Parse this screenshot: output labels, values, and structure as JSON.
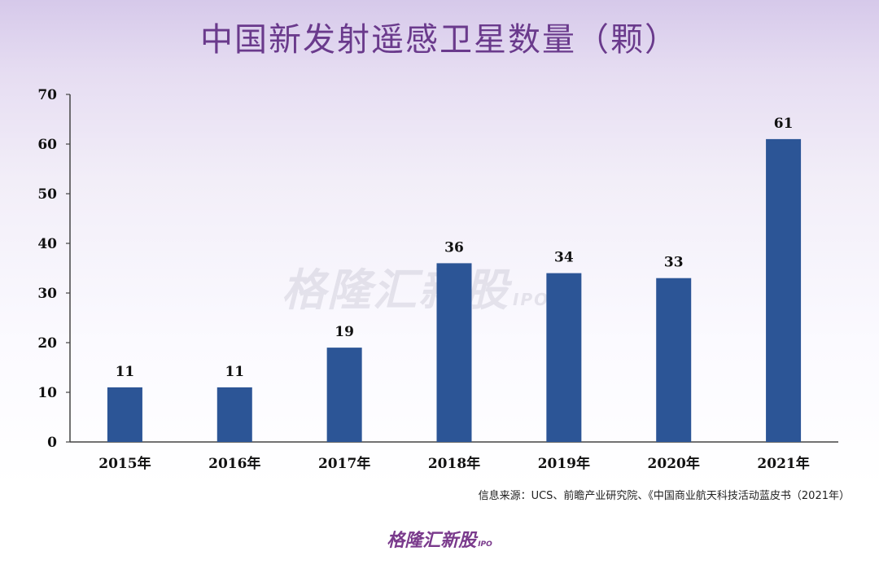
{
  "title": "中国新发射遥感卫星数量（颗）",
  "source": "信息来源：UCS、前瞻产业研究院、《中国商业航天科技活动蓝皮书（2021年）",
  "logo": {
    "text": "格隆汇新股",
    "suffix": "IPO"
  },
  "watermark": {
    "text": "格隆汇新股",
    "suffix": "IPO"
  },
  "colors": {
    "bar": "#2c5596",
    "title": "#6a3a8c"
  },
  "chart_data": {
    "type": "bar",
    "categories": [
      "2015年",
      "2016年",
      "2017年",
      "2018年",
      "2019年",
      "2020年",
      "2021年"
    ],
    "values": [
      11,
      11,
      19,
      36,
      34,
      33,
      61
    ],
    "ylim": [
      0,
      70
    ],
    "yticks": [
      0,
      10,
      20,
      30,
      40,
      50,
      60,
      70
    ],
    "grid": false,
    "legend": "none"
  }
}
